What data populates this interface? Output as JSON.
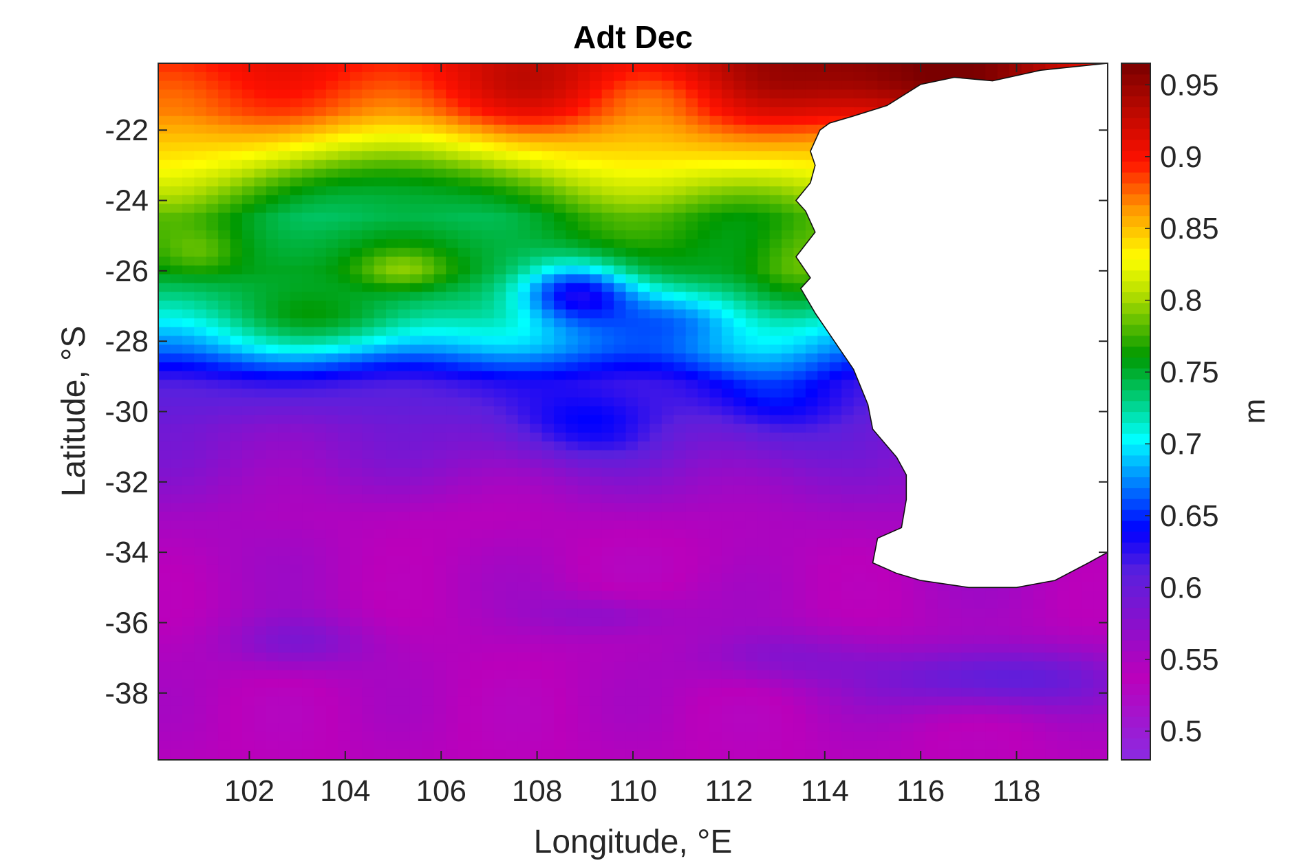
{
  "chart_data": {
    "type": "heatmap",
    "title": "Adt Dec",
    "xlabel": "Longitude, °E",
    "ylabel": "Latitude, °S",
    "colorbar_label": "m",
    "xlim": [
      100.1,
      119.9
    ],
    "ylim": [
      -39.9,
      -20.1
    ],
    "x_ticks": [
      102,
      104,
      106,
      108,
      110,
      112,
      114,
      116,
      118
    ],
    "y_ticks": [
      -22,
      -24,
      -26,
      -28,
      -30,
      -32,
      -34,
      -36,
      -38
    ],
    "clim": [
      0.48,
      0.965
    ],
    "colorbar_ticks": [
      0.5,
      0.55,
      0.6,
      0.65,
      0.7,
      0.75,
      0.8,
      0.85,
      0.9,
      0.95
    ],
    "colormap_stops": [
      {
        "v": 0.0,
        "c": "#8a2be2"
      },
      {
        "v": 0.12,
        "c": "#bb00bb"
      },
      {
        "v": 0.27,
        "c": "#5a20dd"
      },
      {
        "v": 0.33,
        "c": "#0000ff"
      },
      {
        "v": 0.41,
        "c": "#0099ff"
      },
      {
        "v": 0.46,
        "c": "#00ffff"
      },
      {
        "v": 0.52,
        "c": "#00cc77"
      },
      {
        "v": 0.58,
        "c": "#009900"
      },
      {
        "v": 0.67,
        "c": "#b7e000"
      },
      {
        "v": 0.72,
        "c": "#ffff00"
      },
      {
        "v": 0.79,
        "c": "#ff9900"
      },
      {
        "v": 0.86,
        "c": "#ff1100"
      },
      {
        "v": 1.0,
        "c": "#7a0000"
      }
    ],
    "grid_resolution_deg": 0.25,
    "field_model": {
      "lat_profile": [
        [
          -20.1,
          0.9
        ],
        [
          -21.5,
          0.88
        ],
        [
          -23.0,
          0.83
        ],
        [
          -24.5,
          0.77
        ],
        [
          -26.0,
          0.755
        ],
        [
          -27.2,
          0.72
        ],
        [
          -28.2,
          0.68
        ],
        [
          -29.2,
          0.62
        ],
        [
          -30.5,
          0.585
        ],
        [
          -33.0,
          0.555
        ],
        [
          -36.0,
          0.545
        ],
        [
          -39.9,
          0.54
        ]
      ],
      "anomalies": [
        {
          "lon": 115.5,
          "lat": -20.5,
          "amp": 0.07,
          "sx": 4.0,
          "sy": 1.4
        },
        {
          "lon": 108.5,
          "lat": -20.8,
          "amp": 0.03,
          "sx": 2.5,
          "sy": 1.2
        },
        {
          "lon": 110.5,
          "lat": -21.0,
          "amp": -0.03,
          "sx": 1.6,
          "sy": 1.0
        },
        {
          "lon": 105.0,
          "lat": -23.5,
          "amp": -0.06,
          "sx": 2.5,
          "sy": 1.5
        },
        {
          "lon": 105.2,
          "lat": -26.0,
          "amp": 0.04,
          "sx": 1.0,
          "sy": 0.6
        },
        {
          "lon": 101.0,
          "lat": -25.5,
          "amp": 0.02,
          "sx": 0.8,
          "sy": 0.6
        },
        {
          "lon": 108.8,
          "lat": -26.6,
          "amp": -0.1,
          "sx": 1.2,
          "sy": 0.9
        },
        {
          "lon": 111.0,
          "lat": -27.3,
          "amp": -0.04,
          "sx": 1.5,
          "sy": 0.8
        },
        {
          "lon": 103.8,
          "lat": -27.5,
          "amp": 0.04,
          "sx": 2.0,
          "sy": 0.9
        },
        {
          "lon": 113.5,
          "lat": -26.0,
          "amp": 0.03,
          "sx": 1.0,
          "sy": 1.2
        },
        {
          "lon": 108.8,
          "lat": -30.5,
          "amp": 0.05,
          "sx": 1.8,
          "sy": 1.0
        },
        {
          "lon": 113.0,
          "lat": -30.0,
          "amp": 0.04,
          "sx": 1.5,
          "sy": 1.5
        },
        {
          "lon": 103.0,
          "lat": -36.6,
          "amp": 0.04,
          "sx": 1.5,
          "sy": 0.8
        },
        {
          "lon": 109.5,
          "lat": -35.8,
          "amp": 0.03,
          "sx": 1.5,
          "sy": 0.6
        },
        {
          "lon": 113.0,
          "lat": -37.0,
          "amp": 0.035,
          "sx": 1.8,
          "sy": 0.8
        },
        {
          "lon": 117.5,
          "lat": -37.6,
          "amp": 0.07,
          "sx": 2.5,
          "sy": 0.9
        },
        {
          "lon": 106.0,
          "lat": -33.0,
          "amp": -0.012,
          "sx": 3.0,
          "sy": 1.2
        },
        {
          "lon": 111.0,
          "lat": -34.0,
          "amp": -0.012,
          "sx": 3.0,
          "sy": 1.2
        }
      ]
    },
    "land_polygon": [
      [
        113.9,
        -22.0
      ],
      [
        114.1,
        -21.8
      ],
      [
        114.6,
        -21.6
      ],
      [
        115.3,
        -21.3
      ],
      [
        116.0,
        -20.7
      ],
      [
        116.7,
        -20.5
      ],
      [
        117.5,
        -20.6
      ],
      [
        118.5,
        -20.3
      ],
      [
        119.9,
        -20.1
      ],
      [
        119.9,
        -34.0
      ],
      [
        119.5,
        -34.3
      ],
      [
        118.8,
        -34.8
      ],
      [
        118.0,
        -35.0
      ],
      [
        117.0,
        -35.0
      ],
      [
        116.0,
        -34.8
      ],
      [
        115.5,
        -34.6
      ],
      [
        115.0,
        -34.3
      ],
      [
        115.1,
        -33.6
      ],
      [
        115.6,
        -33.3
      ],
      [
        115.7,
        -32.5
      ],
      [
        115.7,
        -31.8
      ],
      [
        115.5,
        -31.3
      ],
      [
        115.0,
        -30.5
      ],
      [
        114.9,
        -29.8
      ],
      [
        114.6,
        -28.8
      ],
      [
        114.2,
        -28.0
      ],
      [
        113.8,
        -27.2
      ],
      [
        113.5,
        -26.5
      ],
      [
        113.7,
        -26.2
      ],
      [
        113.4,
        -25.6
      ],
      [
        113.8,
        -24.9
      ],
      [
        113.6,
        -24.3
      ],
      [
        113.4,
        -24.0
      ],
      [
        113.7,
        -23.5
      ],
      [
        113.8,
        -23.0
      ],
      [
        113.7,
        -22.6
      ],
      [
        113.9,
        -22.0
      ]
    ]
  }
}
